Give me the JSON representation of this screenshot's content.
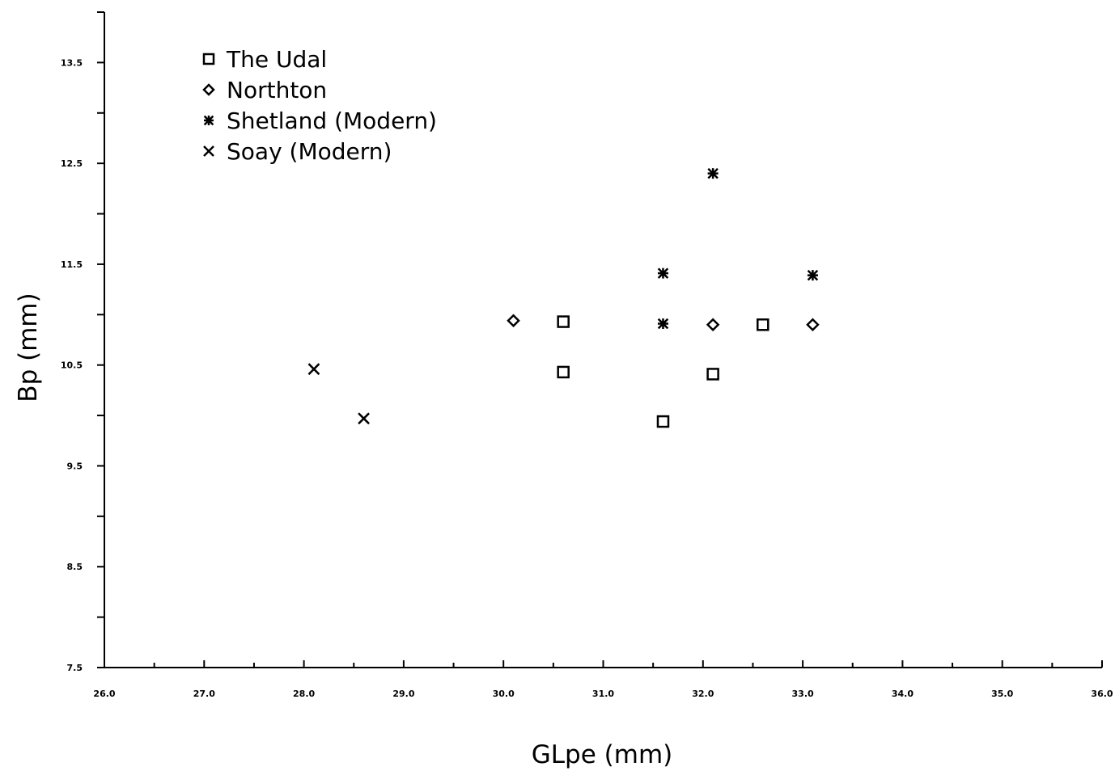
{
  "chart_data": {
    "type": "scatter",
    "title": "",
    "xlabel": "GLpe (mm)",
    "ylabel": "Bp (mm)",
    "xlim": [
      26.0,
      36.0
    ],
    "ylim": [
      7.5,
      14.0
    ],
    "x_ticks": [
      "26.0",
      "27.0",
      "28.0",
      "29.0",
      "30.0",
      "31.0",
      "32.0",
      "33.0",
      "34.0",
      "35.0",
      "36.0"
    ],
    "y_ticks": [
      "7.5",
      "8.5",
      "9.5",
      "10.5",
      "11.5",
      "12.5",
      "13.5"
    ],
    "grid": false,
    "legend_position": "top-left",
    "series": [
      {
        "name": "The Udal",
        "marker": "square",
        "points": [
          [
            30.6,
            10.93
          ],
          [
            30.6,
            10.43
          ],
          [
            31.6,
            9.94
          ],
          [
            32.1,
            10.41
          ],
          [
            32.6,
            10.9
          ]
        ]
      },
      {
        "name": "Northton",
        "marker": "diamond",
        "points": [
          [
            30.1,
            10.94
          ],
          [
            32.1,
            10.9
          ],
          [
            33.1,
            10.9
          ]
        ]
      },
      {
        "name": "Shetland (Modern)",
        "marker": "asterisk",
        "points": [
          [
            32.1,
            12.4
          ],
          [
            31.6,
            11.41
          ],
          [
            33.1,
            11.39
          ],
          [
            31.6,
            10.91
          ]
        ]
      },
      {
        "name": "Soay (Modern)",
        "marker": "x",
        "points": [
          [
            28.1,
            10.46
          ],
          [
            28.6,
            9.97
          ]
        ]
      }
    ]
  }
}
